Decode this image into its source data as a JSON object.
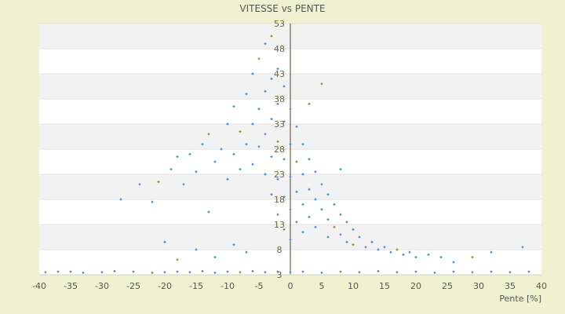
{
  "chart_data": {
    "type": "scatter",
    "title": "VITESSE vs PENTE",
    "xlabel": "Pente [%]",
    "ylabel": "",
    "xlim": [
      -40,
      40
    ],
    "ylim": [
      3,
      53
    ],
    "x_ticks": [
      "-40",
      "-35",
      "-30",
      "-25",
      "-20",
      "-15",
      "-10",
      "-5",
      "0",
      "5",
      "10",
      "15",
      "20",
      "25",
      "30",
      "35",
      "40"
    ],
    "y_ticks": [
      "3",
      "8",
      "13",
      "18",
      "23",
      "28",
      "33",
      "38",
      "43",
      "48",
      "53"
    ],
    "grid": true,
    "legend": "none",
    "colors": {
      "series_primary": "#3a86d6",
      "series_secondary": "#8c8a1e",
      "plot_band": "#f2f2f2",
      "plot_bg": "#ffffff",
      "page_bg": "#eef2d0"
    },
    "series": [
      {
        "values": [
          {
            "x": -39,
            "y": 3.5
          },
          {
            "x": -37,
            "y": 3.6
          },
          {
            "x": -35,
            "y": 3.6
          },
          {
            "x": -33,
            "y": 3.4
          },
          {
            "x": -30,
            "y": 3.5
          },
          {
            "x": -28,
            "y": 3.7
          },
          {
            "x": -25,
            "y": 3.6
          },
          {
            "x": -22,
            "y": 3.4
          },
          {
            "x": -20,
            "y": 3.5
          },
          {
            "x": -18,
            "y": 3.6
          },
          {
            "x": -16,
            "y": 3.5
          },
          {
            "x": -14,
            "y": 3.7
          },
          {
            "x": -12,
            "y": 3.4
          },
          {
            "x": -10,
            "y": 3.6
          },
          {
            "x": -8,
            "y": 3.5
          },
          {
            "x": -6,
            "y": 3.7
          },
          {
            "x": -4,
            "y": 3.5
          },
          {
            "x": -2,
            "y": 3.6
          },
          {
            "x": 0,
            "y": 3.5
          },
          {
            "x": 2,
            "y": 3.6
          },
          {
            "x": 5,
            "y": 3.4
          },
          {
            "x": 8,
            "y": 3.6
          },
          {
            "x": 11,
            "y": 3.5
          },
          {
            "x": 14,
            "y": 3.7
          },
          {
            "x": 17,
            "y": 3.5
          },
          {
            "x": 20,
            "y": 3.6
          },
          {
            "x": 23,
            "y": 3.4
          },
          {
            "x": 26,
            "y": 3.6
          },
          {
            "x": 29,
            "y": 3.5
          },
          {
            "x": 32,
            "y": 3.6
          },
          {
            "x": 35,
            "y": 3.5
          },
          {
            "x": 38,
            "y": 3.6
          },
          {
            "x": -27,
            "y": 18.0
          },
          {
            "x": -24,
            "y": 21.0
          },
          {
            "x": -22,
            "y": 17.5
          },
          {
            "x": -21,
            "y": 21.5
          },
          {
            "x": -19,
            "y": 24.0
          },
          {
            "x": -18,
            "y": 26.5
          },
          {
            "x": -17,
            "y": 21.0
          },
          {
            "x": -16,
            "y": 27.0
          },
          {
            "x": -15,
            "y": 23.5
          },
          {
            "x": -14,
            "y": 29.0
          },
          {
            "x": -13,
            "y": 31.0
          },
          {
            "x": -12,
            "y": 25.5
          },
          {
            "x": -11,
            "y": 28.0
          },
          {
            "x": -10,
            "y": 33.0
          },
          {
            "x": -10,
            "y": 22.0
          },
          {
            "x": -9,
            "y": 36.5
          },
          {
            "x": -9,
            "y": 27.0
          },
          {
            "x": -8,
            "y": 31.5
          },
          {
            "x": -8,
            "y": 24.0
          },
          {
            "x": -7,
            "y": 39.0
          },
          {
            "x": -7,
            "y": 29.0
          },
          {
            "x": -6,
            "y": 43.0
          },
          {
            "x": -6,
            "y": 33.0
          },
          {
            "x": -6,
            "y": 25.0
          },
          {
            "x": -5,
            "y": 46.0
          },
          {
            "x": -5,
            "y": 36.0
          },
          {
            "x": -5,
            "y": 28.5
          },
          {
            "x": -4,
            "y": 49.0
          },
          {
            "x": -4,
            "y": 39.5
          },
          {
            "x": -4,
            "y": 31.0
          },
          {
            "x": -4,
            "y": 23.0
          },
          {
            "x": -3,
            "y": 50.5
          },
          {
            "x": -3,
            "y": 42.0
          },
          {
            "x": -3,
            "y": 34.0
          },
          {
            "x": -3,
            "y": 26.5
          },
          {
            "x": -3,
            "y": 19.0
          },
          {
            "x": -2,
            "y": 44.0
          },
          {
            "x": -2,
            "y": 37.0
          },
          {
            "x": -2,
            "y": 29.5
          },
          {
            "x": -2,
            "y": 22.0
          },
          {
            "x": -2,
            "y": 15.0
          },
          {
            "x": -1,
            "y": 40.5
          },
          {
            "x": -1,
            "y": 33.5
          },
          {
            "x": -1,
            "y": 26.0
          },
          {
            "x": -1,
            "y": 18.5
          },
          {
            "x": -1,
            "y": 12.0
          },
          {
            "x": 0,
            "y": 36.0
          },
          {
            "x": 0,
            "y": 29.0
          },
          {
            "x": 0,
            "y": 22.5
          },
          {
            "x": 0,
            "y": 16.0
          },
          {
            "x": 0,
            "y": 10.0
          },
          {
            "x": 1,
            "y": 32.5
          },
          {
            "x": 1,
            "y": 25.5
          },
          {
            "x": 1,
            "y": 19.5
          },
          {
            "x": 1,
            "y": 13.5
          },
          {
            "x": 2,
            "y": 29.0
          },
          {
            "x": 2,
            "y": 23.0
          },
          {
            "x": 2,
            "y": 17.0
          },
          {
            "x": 2,
            "y": 11.5
          },
          {
            "x": 3,
            "y": 37.0
          },
          {
            "x": 3,
            "y": 26.0
          },
          {
            "x": 3,
            "y": 20.0
          },
          {
            "x": 3,
            "y": 14.5
          },
          {
            "x": 4,
            "y": 23.5
          },
          {
            "x": 4,
            "y": 18.0
          },
          {
            "x": 4,
            "y": 12.5
          },
          {
            "x": 5,
            "y": 41.0
          },
          {
            "x": 5,
            "y": 21.0
          },
          {
            "x": 5,
            "y": 16.0
          },
          {
            "x": 6,
            "y": 19.0
          },
          {
            "x": 6,
            "y": 14.0
          },
          {
            "x": 6,
            "y": 10.5
          },
          {
            "x": 7,
            "y": 17.0
          },
          {
            "x": 7,
            "y": 12.5
          },
          {
            "x": 8,
            "y": 24.0
          },
          {
            "x": 8,
            "y": 15.0
          },
          {
            "x": 8,
            "y": 11.0
          },
          {
            "x": 9,
            "y": 13.5
          },
          {
            "x": 9,
            "y": 9.5
          },
          {
            "x": 10,
            "y": 12.0
          },
          {
            "x": 10,
            "y": 9.0
          },
          {
            "x": 11,
            "y": 10.5
          },
          {
            "x": 12,
            "y": 8.5
          },
          {
            "x": 13,
            "y": 9.5
          },
          {
            "x": 14,
            "y": 8.0
          },
          {
            "x": 15,
            "y": 8.5
          },
          {
            "x": 16,
            "y": 7.5
          },
          {
            "x": 17,
            "y": 8.0
          },
          {
            "x": 18,
            "y": 7.0
          },
          {
            "x": 19,
            "y": 7.5
          },
          {
            "x": 20,
            "y": 6.5
          },
          {
            "x": 22,
            "y": 7.0
          },
          {
            "x": 24,
            "y": 6.5
          },
          {
            "x": 26,
            "y": 5.5
          },
          {
            "x": 29,
            "y": 6.5
          },
          {
            "x": 32,
            "y": 7.5
          },
          {
            "x": 37,
            "y": 8.5
          },
          {
            "x": -15,
            "y": 8.0
          },
          {
            "x": -12,
            "y": 6.5
          },
          {
            "x": -9,
            "y": 9.0
          },
          {
            "x": -7,
            "y": 7.5
          },
          {
            "x": -18,
            "y": 6.0
          },
          {
            "x": -20,
            "y": 9.5
          },
          {
            "x": -13,
            "y": 15.5
          }
        ]
      }
    ]
  }
}
